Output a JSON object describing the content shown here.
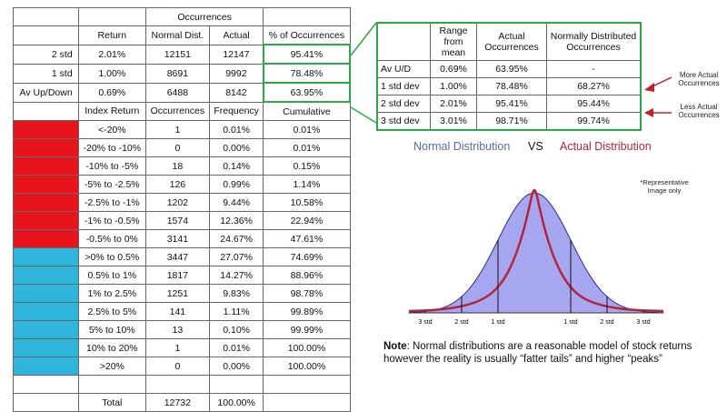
{
  "left_table": {
    "header_group": "Occurrences",
    "header": [
      "",
      "Return",
      "Normal Dist.",
      "Actual",
      "% of Occurrences"
    ],
    "summary_rows": [
      [
        "2 std",
        "2.01%",
        "12151",
        "12147",
        "95.41%"
      ],
      [
        "1 std",
        "1.00%",
        "8691",
        "9992",
        "78.48%"
      ],
      [
        "Av Up/Down",
        "0.69%",
        "6488",
        "8142",
        "63.95%"
      ]
    ],
    "dist_header": [
      "Index Return",
      "Occurrences",
      "Frequency",
      "Cumulative"
    ],
    "dist_rows": [
      [
        "<-20%",
        "1",
        "0.01%",
        "0.01%"
      ],
      [
        "-20% to -10%",
        "0",
        "0.00%",
        "0.01%"
      ],
      [
        "-10% to -5%",
        "18",
        "0.14%",
        "0.15%"
      ],
      [
        "-5% to -2.5%",
        "126",
        "0.99%",
        "1.14%"
      ],
      [
        "-2.5% to -1%",
        "1202",
        "9.44%",
        "10.58%"
      ],
      [
        "-1% to -0.5%",
        "1574",
        "12.36%",
        "22.94%"
      ],
      [
        "-0.5% to 0%",
        "3141",
        "24.67%",
        "47.61%"
      ],
      [
        ">0% to 0.5%",
        "3447",
        "27.07%",
        "74.69%"
      ],
      [
        "0.5% to 1%",
        "1817",
        "14.27%",
        "88.96%"
      ],
      [
        "1% to 2.5%",
        "1251",
        "9.83%",
        "98.78%"
      ],
      [
        "2.5% to 5%",
        "141",
        "1.11%",
        "99.89%"
      ],
      [
        "5% to 10%",
        "13",
        "0.10%",
        "99.99%"
      ],
      [
        "10% to 20%",
        "1",
        "0.01%",
        "100.00%"
      ],
      [
        ">20%",
        "0",
        "0.00%",
        "100.00%"
      ]
    ],
    "total_row": [
      "Total",
      "12732",
      "100.00%"
    ]
  },
  "right_table": {
    "header": [
      "",
      "Range from mean",
      "Actual Occurrences",
      "Normally Distributed Occurrences"
    ],
    "rows": [
      [
        "Av U/D",
        "0.69%",
        "63.95%",
        "-"
      ],
      [
        "1 std dev",
        "1.00%",
        "78.48%",
        "68.27%"
      ],
      [
        "2 std dev",
        "2.01%",
        "95.41%",
        "95.44%"
      ],
      [
        "3 std dev",
        "3.01%",
        "98.71%",
        "99.74%"
      ]
    ],
    "note_more": "More Actual Occurrences",
    "note_less": "Less Actual Occurrences"
  },
  "dist_chart": {
    "title_normal": "Normal Distribution",
    "title_vs": "VS",
    "title_actual": "Actual Distribution",
    "rep_note": "*Representative Image only",
    "axis_labels": [
      "3 std",
      "2 std",
      "1 std",
      "1 std",
      "2 std",
      "3 std"
    ],
    "colors": {
      "normal_fill": "#a7a6f0",
      "normal_line": "#2b2b8a",
      "actual_line": "#b0263a",
      "normal_title": "#5a6aa8",
      "actual_title": "#b4263a"
    }
  },
  "bottom_note": {
    "bold": "Note",
    "text": ": Normal distributions are a reasonable model of stock returns however the reality is usually “fatter tails” and higher “peaks”"
  }
}
